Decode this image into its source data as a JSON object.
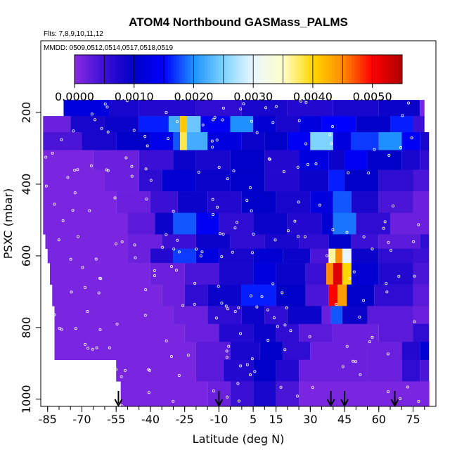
{
  "chart_data": {
    "type": "heatmap",
    "title": "ATOM4 Northbound GASMass_PALMS",
    "flights_label": "Flts: 7,8,9,10,11,12",
    "dates_label": "MMDD: 0509,0512,0514,0517,0518,0519",
    "xlabel": "Latitude (deg N)",
    "ylabel": "PSXC (mbar)",
    "x_ticks": [
      "-85",
      "-70",
      "-55",
      "-40",
      "-25",
      "-10",
      "5",
      "15",
      "30",
      "45",
      "60",
      "75"
    ],
    "x_tick_values": [
      -85,
      -70,
      -55,
      -40,
      -25,
      -10,
      5,
      15,
      30,
      45,
      60,
      75
    ],
    "y_ticks": [
      "200",
      "400",
      "600",
      "800",
      "1000"
    ],
    "y_tick_values": [
      200,
      400,
      600,
      800,
      1000
    ],
    "xlim": [
      -88,
      85
    ],
    "ylim": [
      1020,
      0
    ],
    "colorbar": {
      "ticks": [
        "0.0000",
        "0.0010",
        "0.0020",
        "0.0030",
        "0.0040",
        "0.0050"
      ],
      "tick_values": [
        0.0,
        0.001,
        0.002,
        0.003,
        0.004,
        0.005
      ],
      "range": [
        0.0,
        0.0055
      ],
      "colors": [
        "#8a2be2",
        "#3b0fd4",
        "#0000c8",
        "#0000ff",
        "#1e90ff",
        "#7fd4ff",
        "#eaf6ff",
        "#ffffc8",
        "#ffd700",
        "#ff8c00",
        "#ff0000",
        "#b00000"
      ]
    },
    "arrow_latitudes": [
      -54,
      -10,
      39,
      45,
      67
    ],
    "pressure_bands": [
      {
        "p_top": 165,
        "p_bot": 210,
        "lat_start": -78,
        "lat_end": 80,
        "segments": [
          [
            -78,
            0.0012
          ],
          [
            -58,
            0.0008
          ],
          [
            -45,
            0.0007
          ],
          [
            -20,
            0.0006
          ],
          [
            0,
            0.0008
          ],
          [
            20,
            0.0007
          ],
          [
            40,
            0.0008
          ],
          [
            60,
            0.0009
          ],
          [
            78,
            0.0001
          ]
        ]
      },
      {
        "p_top": 210,
        "p_bot": 255,
        "lat_start": -87,
        "lat_end": 80,
        "segments": [
          [
            -87,
            0.0002
          ],
          [
            -75,
            0.0008
          ],
          [
            -60,
            0.0009
          ],
          [
            -45,
            0.0016
          ],
          [
            -32,
            0.0022
          ],
          [
            -27,
            0.0041
          ],
          [
            -24,
            0.0024
          ],
          [
            -18,
            0.0014
          ],
          [
            -5,
            0.002
          ],
          [
            5,
            0.0011
          ],
          [
            15,
            0.0008
          ],
          [
            25,
            0.0012
          ],
          [
            35,
            0.0015
          ],
          [
            50,
            0.001
          ],
          [
            65,
            0.0016
          ],
          [
            75,
            0.0005
          ]
        ]
      },
      {
        "p_top": 255,
        "p_bot": 305,
        "lat_start": -87,
        "lat_end": 82,
        "segments": [
          [
            -87,
            0.0004
          ],
          [
            -70,
            0.0008
          ],
          [
            -55,
            0.001
          ],
          [
            -40,
            0.0013
          ],
          [
            -30,
            0.0018
          ],
          [
            -27,
            0.0038
          ],
          [
            -24,
            0.0022
          ],
          [
            -15,
            0.0012
          ],
          [
            0,
            0.0009
          ],
          [
            10,
            0.001
          ],
          [
            20,
            0.0014
          ],
          [
            30,
            0.0025
          ],
          [
            40,
            0.0012
          ],
          [
            48,
            0.0017
          ],
          [
            60,
            0.002
          ],
          [
            70,
            0.0014
          ],
          [
            78,
            0.0008
          ]
        ]
      },
      {
        "p_top": 305,
        "p_bot": 360,
        "lat_start": -87,
        "lat_end": 82,
        "segments": [
          [
            -87,
            0.0001
          ],
          [
            -65,
            0.0002
          ],
          [
            -45,
            0.0005
          ],
          [
            -30,
            0.0009
          ],
          [
            -20,
            0.0008
          ],
          [
            -5,
            0.001
          ],
          [
            10,
            0.0007
          ],
          [
            25,
            0.0012
          ],
          [
            38,
            0.0009
          ],
          [
            45,
            0.0014
          ],
          [
            55,
            0.001
          ],
          [
            70,
            0.0008
          ],
          [
            78,
            0.0006
          ]
        ]
      },
      {
        "p_top": 360,
        "p_bot": 420,
        "lat_start": -87,
        "lat_end": 82,
        "segments": [
          [
            -87,
            0.0001
          ],
          [
            -60,
            0.0002
          ],
          [
            -45,
            0.0006
          ],
          [
            -35,
            0.0011
          ],
          [
            -20,
            0.0009
          ],
          [
            -5,
            0.001
          ],
          [
            10,
            0.0007
          ],
          [
            25,
            0.0009
          ],
          [
            38,
            0.0016
          ],
          [
            45,
            0.001
          ],
          [
            60,
            0.0006
          ],
          [
            75,
            0.0004
          ]
        ]
      },
      {
        "p_top": 420,
        "p_bot": 480,
        "lat_start": -87,
        "lat_end": 82,
        "segments": [
          [
            -87,
            0.0001
          ],
          [
            -55,
            0.0002
          ],
          [
            -40,
            0.0005
          ],
          [
            -28,
            0.0009
          ],
          [
            -15,
            0.0007
          ],
          [
            0,
            0.001
          ],
          [
            15,
            0.0008
          ],
          [
            30,
            0.0012
          ],
          [
            40,
            0.0018
          ],
          [
            48,
            0.0008
          ],
          [
            60,
            0.0004
          ],
          [
            75,
            0.0002
          ]
        ]
      },
      {
        "p_top": 480,
        "p_bot": 540,
        "lat_start": -87,
        "lat_end": 82,
        "segments": [
          [
            -87,
            0.0001
          ],
          [
            -50,
            0.0003
          ],
          [
            -38,
            0.0009
          ],
          [
            -30,
            0.0018
          ],
          [
            -20,
            0.0014
          ],
          [
            -10,
            0.0006
          ],
          [
            5,
            0.0009
          ],
          [
            20,
            0.0007
          ],
          [
            35,
            0.0011
          ],
          [
            40,
            0.0019
          ],
          [
            50,
            0.0006
          ],
          [
            65,
            0.0002
          ]
        ]
      },
      {
        "p_top": 540,
        "p_bot": 580,
        "lat_start": -86,
        "lat_end": 82,
        "segments": [
          [
            -86,
            0.0001
          ],
          [
            -50,
            0.0002
          ],
          [
            -35,
            0.0005
          ],
          [
            -20,
            0.0009
          ],
          [
            -5,
            0.0006
          ],
          [
            10,
            0.0008
          ],
          [
            25,
            0.0006
          ],
          [
            38,
            0.001
          ],
          [
            48,
            0.0005
          ],
          [
            60,
            0.0003
          ],
          [
            78,
            0.0006
          ]
        ]
      },
      {
        "p_top": 580,
        "p_bot": 620,
        "lat_start": -85,
        "lat_end": 82,
        "segments": [
          [
            -85,
            0.0001
          ],
          [
            -50,
            0.0002
          ],
          [
            -40,
            0.0007
          ],
          [
            -30,
            0.0017
          ],
          [
            -20,
            0.0012
          ],
          [
            -10,
            0.0008
          ],
          [
            5,
            0.0011
          ],
          [
            18,
            0.0009
          ],
          [
            30,
            0.0004
          ],
          [
            38,
            0.0036
          ],
          [
            41,
            0.0045
          ],
          [
            44,
            0.003
          ],
          [
            48,
            0.0009
          ],
          [
            60,
            0.0006
          ],
          [
            75,
            0.0005
          ]
        ]
      },
      {
        "p_top": 620,
        "p_bot": 680,
        "lat_start": -84,
        "lat_end": 82,
        "segments": [
          [
            -84,
            0.0001
          ],
          [
            -40,
            0.0002
          ],
          [
            -25,
            0.0004
          ],
          [
            -10,
            0.0008
          ],
          [
            5,
            0.0012
          ],
          [
            15,
            0.0009
          ],
          [
            28,
            0.0005
          ],
          [
            37,
            0.0045
          ],
          [
            40,
            0.0052
          ],
          [
            44,
            0.004
          ],
          [
            48,
            0.0011
          ],
          [
            60,
            0.0007
          ],
          [
            75,
            0.0004
          ]
        ]
      },
      {
        "p_top": 680,
        "p_bot": 740,
        "lat_start": -83,
        "lat_end": 82,
        "segments": [
          [
            -83,
            0.0001
          ],
          [
            -35,
            0.0002
          ],
          [
            -25,
            0.0006
          ],
          [
            -15,
            0.0009
          ],
          [
            0,
            0.0016
          ],
          [
            15,
            0.001
          ],
          [
            28,
            0.0004
          ],
          [
            38,
            0.005
          ],
          [
            42,
            0.0044
          ],
          [
            46,
            0.001
          ],
          [
            58,
            0.0006
          ],
          [
            75,
            0.0003
          ]
        ]
      },
      {
        "p_top": 740,
        "p_bot": 790,
        "lat_start": -82,
        "lat_end": 82,
        "segments": [
          [
            -82,
            0.0001
          ],
          [
            -30,
            0.0002
          ],
          [
            -15,
            0.0006
          ],
          [
            0,
            0.0009
          ],
          [
            10,
            0.0006
          ],
          [
            20,
            0.0009
          ],
          [
            35,
            0.0002
          ],
          [
            39,
            0.0018
          ],
          [
            44,
            0.0009
          ],
          [
            55,
            0.0003
          ],
          [
            75,
            0.0002
          ]
        ]
      },
      {
        "p_top": 790,
        "p_bot": 840,
        "lat_start": -82,
        "lat_end": 82,
        "segments": [
          [
            -82,
            0.0001
          ],
          [
            -25,
            0.0002
          ],
          [
            -10,
            0.0007
          ],
          [
            5,
            0.0009
          ],
          [
            15,
            0.0006
          ],
          [
            25,
            0.0003
          ],
          [
            40,
            0.0002
          ],
          [
            60,
            0.0003
          ],
          [
            75,
            0.0006
          ]
        ]
      },
      {
        "p_top": 840,
        "p_bot": 890,
        "lat_start": -82,
        "lat_end": 82,
        "segments": [
          [
            -82,
            0.0001
          ],
          [
            -20,
            0.0003
          ],
          [
            -5,
            0.0008
          ],
          [
            8,
            0.001
          ],
          [
            18,
            0.0006
          ],
          [
            30,
            0.0002
          ],
          [
            55,
            0.0002
          ],
          [
            70,
            0.0007
          ],
          [
            78,
            0.0011
          ]
        ]
      },
      {
        "p_top": 890,
        "p_bot": 950,
        "lat_start": -55,
        "lat_end": 82,
        "segments": [
          [
            -55,
            0.0001
          ],
          [
            -20,
            0.0003
          ],
          [
            -8,
            0.0007
          ],
          [
            5,
            0.001
          ],
          [
            15,
            0.0007
          ],
          [
            25,
            0.0002
          ],
          [
            55,
            0.0002
          ],
          [
            70,
            0.0006
          ],
          [
            78,
            0.0004
          ]
        ]
      },
      {
        "p_top": 950,
        "p_bot": 1020,
        "lat_start": -53,
        "lat_end": 82,
        "segments": [
          [
            -53,
            0.0001
          ],
          [
            -15,
            0.0002
          ],
          [
            -5,
            0.0005
          ],
          [
            5,
            0.0008
          ],
          [
            15,
            0.0004
          ],
          [
            25,
            0.0001
          ],
          [
            82,
            0.0001
          ]
        ]
      }
    ]
  }
}
